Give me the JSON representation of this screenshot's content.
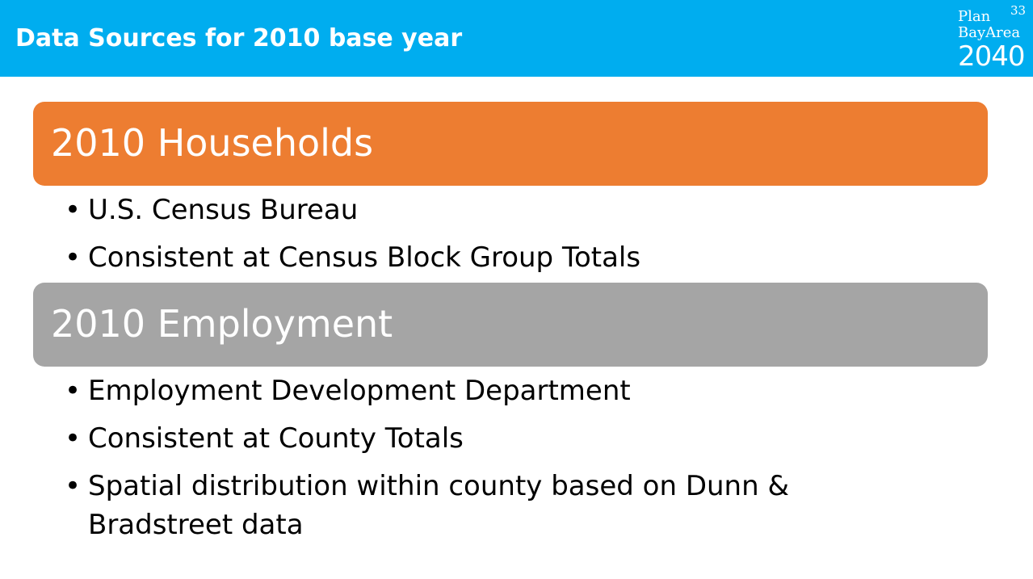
{
  "slide": {
    "title": "Data Sources for 2010 base year",
    "page_number": "33",
    "logo": {
      "line1": "Plan",
      "line2": "BayArea",
      "year": "2040"
    }
  },
  "colors": {
    "header": "#00adef",
    "households_bar": "#ed7d31",
    "employment_bar": "#a5a5a5"
  },
  "sections": [
    {
      "title": "2010 Households",
      "bullets": [
        "U.S. Census Bureau",
        "Consistent at Census Block Group Totals"
      ]
    },
    {
      "title": "2010 Employment",
      "bullets": [
        "Employment Development Department",
        "Consistent at County Totals",
        "Spatial distribution within county based on Dunn & Bradstreet data"
      ]
    }
  ],
  "bullet_glyph": "•"
}
